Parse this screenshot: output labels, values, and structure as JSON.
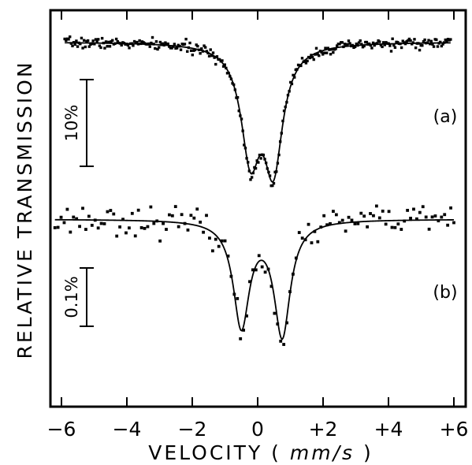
{
  "chart_data": {
    "type": "scatter",
    "xlabel": "VELOCITY ( mm/s )",
    "xlabel_parts": [
      "VELOCITY (",
      "mm/s",
      ")"
    ],
    "ylabel": "RELATIVE TRANSMISSION",
    "xlim": [
      -6.3,
      6.3
    ],
    "xticks": [
      -6,
      -4,
      -2,
      0,
      2,
      4,
      6
    ],
    "xtick_labels": [
      "−6",
      "−4",
      "−2",
      "0",
      "+2",
      "+4",
      "+6"
    ],
    "grid": false,
    "panels": [
      {
        "label": "(a)",
        "scale_bar": "10%",
        "x_range": [
          -5.9,
          5.9
        ],
        "baseline": 0,
        "noise": 0.3,
        "seed": 7,
        "lines": [
          {
            "center": -0.22,
            "depth": 12.3,
            "hwhm": 0.35
          },
          {
            "center": 0.48,
            "depth": 13.5,
            "hwhm": 0.35
          }
        ],
        "ylim": [
          -16.5,
          1.2
        ],
        "n_points": 300
      },
      {
        "label": "(b)",
        "scale_bar": "0.1%",
        "x_range": [
          -6.2,
          6.0
        ],
        "baseline": 0,
        "noise": 0.012,
        "seed": 23,
        "lines": [
          {
            "center": -0.5,
            "depth": 0.175,
            "hwhm": 0.3
          },
          {
            "center": 0.75,
            "depth": 0.19,
            "hwhm": 0.3
          }
        ],
        "ylim": [
          -0.22,
          0.05
        ],
        "n_points": 130
      }
    ]
  }
}
